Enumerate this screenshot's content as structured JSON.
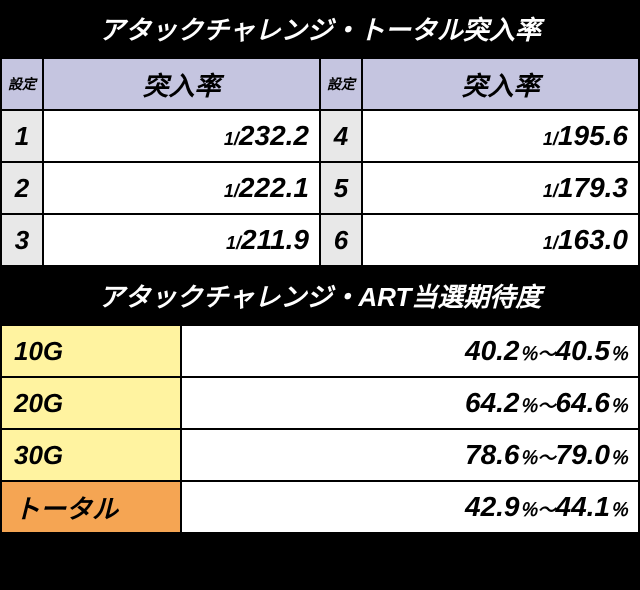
{
  "table1": {
    "title": "アタックチャレンジ・トータル突入率",
    "headers": {
      "settei": "設定",
      "rate": "突入率"
    },
    "rows": [
      {
        "settei_a": "1",
        "prefix_a": "1/",
        "value_a": "232.2",
        "settei_b": "4",
        "prefix_b": "1/",
        "value_b": "195.6"
      },
      {
        "settei_a": "2",
        "prefix_a": "1/",
        "value_a": "222.1",
        "settei_b": "5",
        "prefix_b": "1/",
        "value_b": "179.3"
      },
      {
        "settei_a": "3",
        "prefix_a": "1/",
        "value_a": "211.9",
        "settei_b": "6",
        "prefix_b": "1/",
        "value_b": "163.0"
      }
    ]
  },
  "table2": {
    "title": "アタックチャレンジ・ART当選期待度",
    "rows": [
      {
        "label": "10G",
        "v1": "40.2",
        "u1": "％～",
        "v2": "40.5",
        "u2": "％",
        "bg": "yellow-bg"
      },
      {
        "label": "20G",
        "v1": "64.2",
        "u1": "％～",
        "v2": "64.6",
        "u2": "％",
        "bg": "yellow-bg"
      },
      {
        "label": "30G",
        "v1": "78.6",
        "u1": "％～",
        "v2": "79.0",
        "u2": "％",
        "bg": "yellow-bg"
      },
      {
        "label": "トータル",
        "v1": "42.9",
        "u1": "％～",
        "v2": "44.1",
        "u2": "％",
        "bg": "orange-bg"
      }
    ]
  }
}
